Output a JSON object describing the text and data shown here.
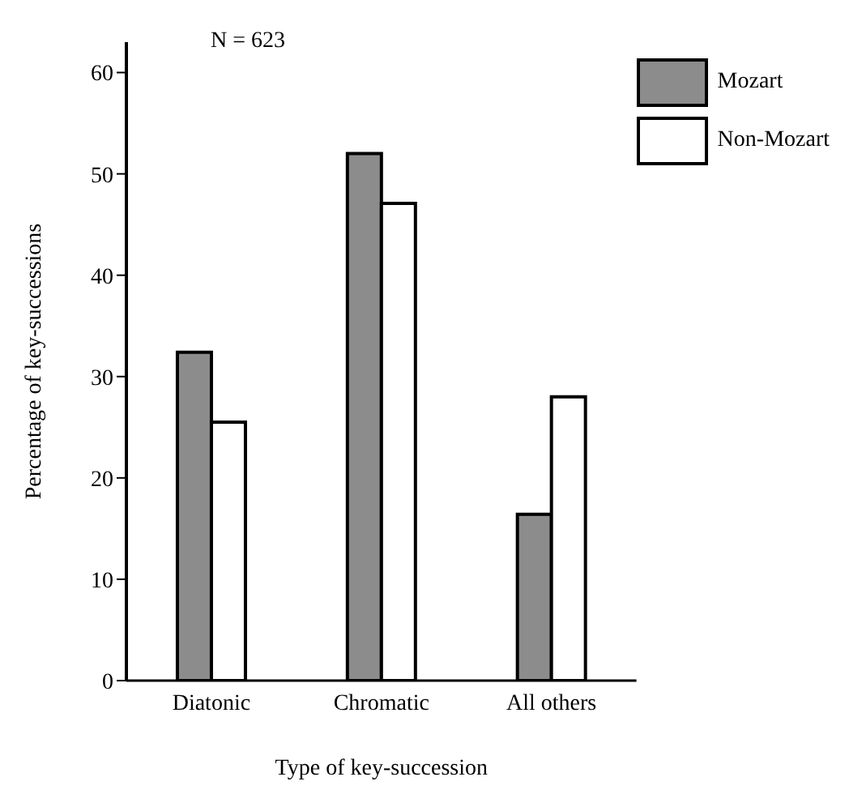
{
  "chart_data": {
    "type": "bar",
    "xlabel": "Type of key-succession",
    "ylabel": "Percentage of key-successions",
    "categories": [
      "Diatonic",
      "Chromatic",
      "All others"
    ],
    "series": [
      {
        "name": "Mozart",
        "color": "#8c8c8c",
        "values": [
          32.4,
          52,
          16.4
        ]
      },
      {
        "name": "Non-Mozart",
        "color": "#ffffff",
        "values": [
          25.5,
          47.1,
          28
        ]
      }
    ],
    "ylim": [
      0,
      63
    ],
    "yticks": [
      0,
      10,
      20,
      30,
      40,
      50,
      60
    ],
    "annotations": [
      "N = 623"
    ],
    "legend": "top right",
    "grid": false
  }
}
